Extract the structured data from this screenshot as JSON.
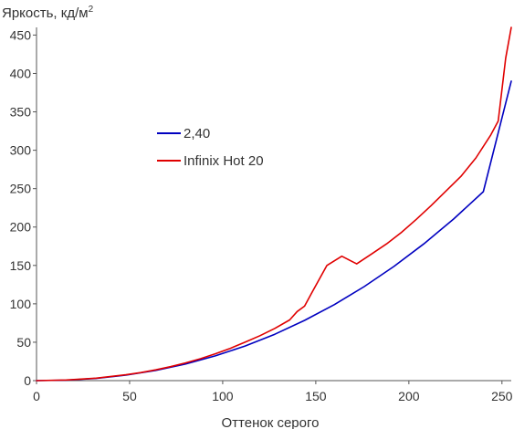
{
  "chart_data": {
    "type": "line",
    "title": "",
    "ylabel": "Яркость, кд/м",
    "ylabel_sup": "2",
    "xlabel": "Оттенок серого",
    "xlim": [
      0,
      255
    ],
    "ylim": [
      0,
      460
    ],
    "xticks": [
      0,
      50,
      100,
      150,
      200,
      250
    ],
    "yticks": [
      0,
      50,
      100,
      150,
      200,
      250,
      300,
      350,
      400,
      450
    ],
    "grid": false,
    "legend_position": "center-left",
    "series": [
      {
        "name": "2,40",
        "color": "#0000c0",
        "x": [
          0,
          16,
          32,
          48,
          64,
          80,
          96,
          112,
          128,
          144,
          160,
          176,
          192,
          208,
          224,
          240,
          255
        ],
        "y": [
          0,
          0.6,
          2.9,
          7.1,
          13.3,
          21.6,
          32.2,
          45.0,
          60.4,
          78.4,
          99.0,
          122.4,
          148.7,
          178.0,
          210.4,
          246.0,
          390.0
        ]
      },
      {
        "name": "Infinix Hot 20",
        "color": "#e00000",
        "x": [
          0,
          16,
          32,
          48,
          56,
          64,
          72,
          80,
          88,
          96,
          104,
          112,
          120,
          128,
          136,
          140,
          144,
          148,
          156,
          164,
          168,
          172,
          180,
          188,
          196,
          204,
          212,
          220,
          228,
          236,
          244,
          248,
          252,
          255
        ],
        "y": [
          0,
          0.8,
          3.2,
          7.6,
          10.5,
          14.0,
          18.2,
          23.0,
          28.5,
          35.0,
          42.0,
          50.0,
          58.5,
          68.0,
          79.0,
          90.0,
          97.0,
          115.0,
          150.0,
          162.0,
          157.0,
          152.0,
          165.0,
          178.0,
          193.0,
          210.0,
          228.0,
          247.0,
          266.0,
          290.0,
          320.0,
          338.0,
          420.0,
          460.0
        ]
      }
    ]
  }
}
